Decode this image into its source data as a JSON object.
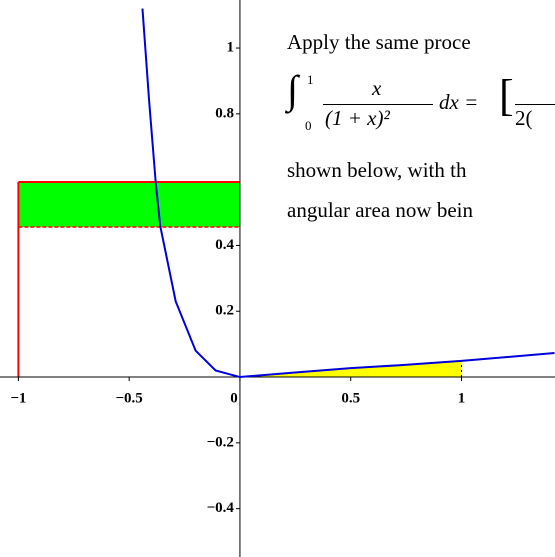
{
  "chart_data": {
    "type": "line",
    "xlim": [
      -1.083,
      1.422
    ],
    "ylim": [
      -0.547,
      1.146
    ],
    "xticks": [
      {
        "value": -1,
        "label": "−1"
      },
      {
        "value": -0.5,
        "label": "−0.5"
      },
      0,
      0.5,
      1
    ],
    "yticks": [
      {
        "value": -0.4,
        "label": "−0.4"
      },
      {
        "value": -0.2,
        "label": "−0.2"
      },
      0.2,
      0.4,
      0.8,
      1
    ],
    "series": [
      {
        "color": "#0000dd",
        "x": [
          -0.44,
          -0.41,
          -0.38,
          -0.36,
          -0.29,
          -0.2,
          -0.11,
          0,
          0.27,
          0.5,
          0.72,
          1.0,
          1.42
        ],
        "values": [
          1.12,
          0.84,
          0.59,
          0.46,
          0.23,
          0.08,
          0.02,
          0,
          0.015,
          0.027,
          0.036,
          0.049,
          0.073
        ]
      }
    ],
    "area": {
      "color": "#ffff00",
      "from": 0,
      "to": 1
    },
    "rectangle": {
      "x": [
        -1,
        0
      ],
      "y": [
        0.456,
        0.593
      ],
      "fill": "#00ff00",
      "stroke": "#ff0000"
    }
  },
  "text": {
    "line1": "Apply the same proce",
    "integral": "∫",
    "upper": "1",
    "lower": "0",
    "numerator": "x",
    "denominator": "(1 + x)²",
    "dx": "dx =",
    "bracket": "[",
    "rest": "2(",
    "line2": "shown below, with th",
    "line3": "angular area now bein"
  }
}
